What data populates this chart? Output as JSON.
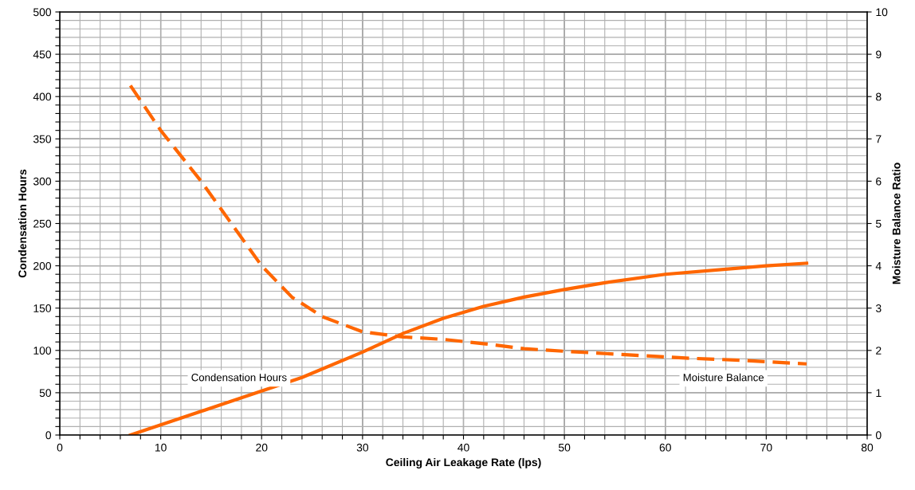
{
  "chart_data": {
    "type": "line",
    "xlabel": "Ceiling Air Leakage Rate (lps)",
    "ylabel": "Condensation Hours",
    "y2label": "Moisture Balance Ratio",
    "xlim": [
      0,
      80
    ],
    "ylim": [
      0,
      500
    ],
    "y2lim": [
      0,
      10
    ],
    "xticks": [
      0,
      {
        "value": 2,
        "label": null
      },
      {
        "value": 4,
        "label": null
      },
      {
        "value": 6,
        "label": null
      },
      {
        "value": 8,
        "label": null
      },
      10,
      {
        "value": 12,
        "label": null
      },
      {
        "value": 14,
        "label": null
      },
      {
        "value": 16,
        "label": null
      },
      {
        "value": 18,
        "label": null
      },
      20,
      {
        "value": 22,
        "label": null
      },
      {
        "value": 24,
        "label": null
      },
      {
        "value": 26,
        "label": null
      },
      {
        "value": 28,
        "label": null
      },
      30,
      {
        "value": 32,
        "label": null
      },
      {
        "value": 34,
        "label": null
      },
      {
        "value": 36,
        "label": null
      },
      {
        "value": 38,
        "label": null
      },
      40,
      {
        "value": 42,
        "label": null
      },
      {
        "value": 44,
        "label": null
      },
      {
        "value": 46,
        "label": null
      },
      {
        "value": 48,
        "label": null
      },
      50,
      {
        "value": 52,
        "label": null
      },
      {
        "value": 54,
        "label": null
      },
      {
        "value": 56,
        "label": null
      },
      {
        "value": 58,
        "label": null
      },
      60,
      {
        "value": 62,
        "label": null
      },
      {
        "value": 64,
        "label": null
      },
      {
        "value": 66,
        "label": null
      },
      {
        "value": 68,
        "label": null
      },
      70,
      {
        "value": 72,
        "label": null
      },
      {
        "value": 74,
        "label": null
      },
      {
        "value": 76,
        "label": null
      },
      {
        "value": 78,
        "label": null
      },
      80
    ],
    "yticks": [
      0,
      {
        "value": 10,
        "label": null
      },
      {
        "value": 20,
        "label": null
      },
      {
        "value": 30,
        "label": null
      },
      {
        "value": 40,
        "label": null
      },
      50,
      {
        "value": 60,
        "label": null
      },
      {
        "value": 70,
        "label": null
      },
      {
        "value": 80,
        "label": null
      },
      {
        "value": 90,
        "label": null
      },
      100,
      {
        "value": 110,
        "label": null
      },
      {
        "value": 120,
        "label": null
      },
      {
        "value": 130,
        "label": null
      },
      {
        "value": 140,
        "label": null
      },
      150,
      {
        "value": 160,
        "label": null
      },
      {
        "value": 170,
        "label": null
      },
      {
        "value": 180,
        "label": null
      },
      {
        "value": 190,
        "label": null
      },
      200,
      {
        "value": 210,
        "label": null
      },
      {
        "value": 220,
        "label": null
      },
      {
        "value": 230,
        "label": null
      },
      {
        "value": 240,
        "label": null
      },
      250,
      {
        "value": 260,
        "label": null
      },
      {
        "value": 270,
        "label": null
      },
      {
        "value": 280,
        "label": null
      },
      {
        "value": 290,
        "label": null
      },
      300,
      {
        "value": 310,
        "label": null
      },
      {
        "value": 320,
        "label": null
      },
      {
        "value": 330,
        "label": null
      },
      {
        "value": 340,
        "label": null
      },
      350,
      {
        "value": 360,
        "label": null
      },
      {
        "value": 370,
        "label": null
      },
      {
        "value": 380,
        "label": null
      },
      {
        "value": 390,
        "label": null
      },
      400,
      {
        "value": 410,
        "label": null
      },
      {
        "value": 420,
        "label": null
      },
      {
        "value": 430,
        "label": null
      },
      {
        "value": 440,
        "label": null
      },
      450,
      {
        "value": 460,
        "label": null
      },
      {
        "value": 470,
        "label": null
      },
      {
        "value": 480,
        "label": null
      },
      {
        "value": 490,
        "label": null
      },
      500
    ],
    "y2ticks": [
      0,
      1,
      2,
      3,
      4,
      5,
      6,
      7,
      8,
      9,
      10
    ],
    "grid": true,
    "legend": false,
    "series": [
      {
        "color": "#ff6600",
        "line_style": "solid",
        "x": [
          7,
          10,
          14,
          20,
          24,
          30,
          34,
          38,
          42,
          46,
          50,
          54,
          60,
          66,
          70,
          74
        ],
        "values": [
          0,
          12,
          28,
          52,
          68,
          98,
          120,
          138,
          152,
          163,
          172,
          180,
          190,
          196,
          200,
          203
        ]
      },
      {
        "color": "#ff6600",
        "line_style": "dashed",
        "axis": "y2",
        "x": [
          7,
          10,
          14,
          17,
          20,
          23,
          26,
          30,
          34,
          38,
          42,
          46,
          50,
          56,
          62,
          68,
          74
        ],
        "values": [
          8.26,
          7.2,
          6.0,
          5.0,
          4.0,
          3.26,
          2.8,
          2.44,
          2.32,
          2.26,
          2.16,
          2.04,
          1.98,
          1.9,
          1.82,
          1.76,
          1.68
        ]
      }
    ],
    "annotations": [
      "Condensation Hours",
      "Moisture Balance"
    ]
  }
}
